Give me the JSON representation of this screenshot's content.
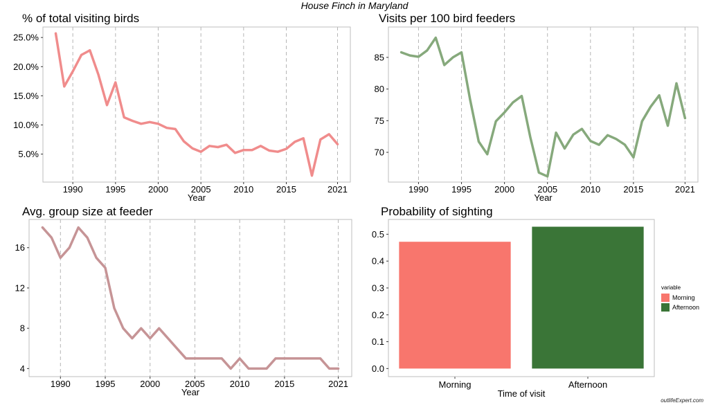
{
  "suptitle": "House Finch in Maryland",
  "watermark": "outlifeExpert.com",
  "chart_data": [
    {
      "id": "pct",
      "type": "line",
      "title": "% of total visiting birds",
      "xlabel": "Year",
      "ylabel": "",
      "xlim": [
        1986.5,
        2022.5
      ],
      "ylim": [
        0.2,
        26.8
      ],
      "xticks": [
        1990,
        1995,
        2000,
        2005,
        2010,
        2015,
        2021
      ],
      "yticks": [
        5,
        10,
        15,
        20,
        25
      ],
      "ytick_labels": [
        "5.0%",
        "10.0%",
        "15.0%",
        "20.0%",
        "25.0%"
      ],
      "grid": "vertical dashed",
      "color": "#F08C8C",
      "x": [
        1988,
        1989,
        1990,
        1991,
        1992,
        1993,
        1994,
        1995,
        1996,
        1997,
        1998,
        1999,
        2000,
        2001,
        2002,
        2003,
        2004,
        2005,
        2006,
        2007,
        2008,
        2009,
        2010,
        2011,
        2012,
        2013,
        2014,
        2015,
        2016,
        2017,
        2018,
        2019,
        2020,
        2021
      ],
      "y": [
        25.7,
        16.6,
        19.2,
        22.0,
        22.8,
        18.6,
        13.4,
        17.3,
        11.3,
        10.7,
        10.2,
        10.5,
        10.2,
        9.5,
        9.3,
        7.2,
        6.0,
        5.4,
        6.4,
        6.2,
        6.6,
        5.2,
        5.7,
        5.7,
        6.4,
        5.6,
        5.4,
        5.9,
        7.1,
        7.7,
        1.3,
        7.5,
        8.4,
        6.7
      ]
    },
    {
      "id": "visits",
      "type": "line",
      "title": "Visits per 100 bird feeders",
      "xlabel": "Year",
      "ylabel": "",
      "xlim": [
        1986.5,
        2022.5
      ],
      "ylim": [
        65.3,
        89.8
      ],
      "xticks": [
        1990,
        1995,
        2000,
        2005,
        2010,
        2015,
        2021
      ],
      "yticks": [
        70,
        75,
        80,
        85
      ],
      "ytick_labels": [
        "70",
        "75",
        "80",
        "85"
      ],
      "grid": "vertical dashed",
      "color": "#86A97C",
      "x": [
        1988,
        1989,
        1990,
        1991,
        1992,
        1993,
        1994,
        1995,
        1996,
        1997,
        1998,
        1999,
        2000,
        2001,
        2002,
        2003,
        2004,
        2005,
        2006,
        2007,
        2008,
        2009,
        2010,
        2011,
        2012,
        2013,
        2014,
        2015,
        2016,
        2017,
        2018,
        2019,
        2020,
        2021
      ],
      "y": [
        85.8,
        85.3,
        85.1,
        86.1,
        88.1,
        83.8,
        85.0,
        85.8,
        78.3,
        71.7,
        69.7,
        74.9,
        76.3,
        77.9,
        78.9,
        72.4,
        66.8,
        66.2,
        73.1,
        70.6,
        72.8,
        73.7,
        71.8,
        71.2,
        72.7,
        72.1,
        71.2,
        69.2,
        74.9,
        77.2,
        79.0,
        74.2,
        80.9,
        75.4
      ]
    },
    {
      "id": "group",
      "type": "line",
      "title": "Avg. group size at feeder",
      "xlabel": "Year",
      "ylabel": "",
      "xlim": [
        1986.5,
        2022.5
      ],
      "ylim": [
        3.2,
        18.8
      ],
      "xticks": [
        1990,
        1995,
        2000,
        2005,
        2010,
        2015,
        2021
      ],
      "yticks": [
        4,
        8,
        12,
        16
      ],
      "ytick_labels": [
        "4",
        "8",
        "12",
        "16"
      ],
      "grid": "vertical dashed",
      "color": "#C69496",
      "x": [
        1988,
        1989,
        1990,
        1991,
        1992,
        1993,
        1994,
        1995,
        1996,
        1997,
        1998,
        1999,
        2000,
        2001,
        2002,
        2003,
        2004,
        2005,
        2006,
        2007,
        2008,
        2009,
        2010,
        2011,
        2012,
        2013,
        2014,
        2015,
        2016,
        2017,
        2018,
        2019,
        2020,
        2021
      ],
      "y": [
        18,
        17,
        15,
        16,
        18,
        17,
        15,
        14,
        10,
        8,
        7,
        8,
        7,
        8,
        7,
        6,
        5,
        5,
        5,
        5,
        5,
        4,
        5,
        4,
        4,
        4,
        5,
        5,
        5,
        5,
        5,
        5,
        4,
        4
      ]
    },
    {
      "id": "prob",
      "type": "bar",
      "title": "Probability of sighting",
      "xlabel": "Time of visit",
      "ylabel": "",
      "ylim": [
        -0.03,
        0.555
      ],
      "yticks": [
        0.0,
        0.1,
        0.2,
        0.3,
        0.4,
        0.5
      ],
      "ytick_labels": [
        "0.0",
        "0.1",
        "0.2",
        "0.3",
        "0.4",
        "0.5"
      ],
      "categories": [
        "Morning",
        "Afternoon"
      ],
      "values": [
        0.472,
        0.528
      ],
      "colors": [
        "#F8766D",
        "#3A7537"
      ],
      "legend_title": "variable",
      "legend_position": "right"
    }
  ]
}
